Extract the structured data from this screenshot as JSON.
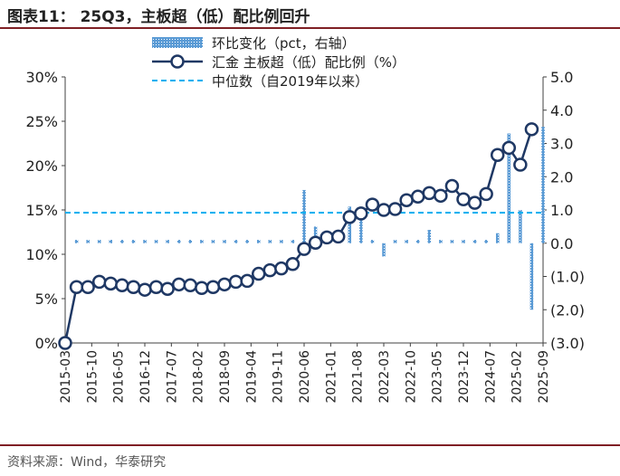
{
  "title": "图表11： 25Q3，主板超（低）配比例回升",
  "source": "资料来源：Wind，华泰研究",
  "colors": {
    "bar": "#5b9bd5",
    "line": "#1f3864",
    "median": "#00b0f0",
    "axis": "#404040"
  },
  "chart_data": {
    "type": "bar+line",
    "x": [
      "2015-03",
      "2015-06",
      "2015-09",
      "2015-12",
      "2016-03",
      "2016-06",
      "2016-09",
      "2016-12",
      "2017-03",
      "2017-06",
      "2017-09",
      "2017-12",
      "2018-03",
      "2018-06",
      "2018-09",
      "2018-12",
      "2019-03",
      "2019-06",
      "2019-09",
      "2019-12",
      "2020-03",
      "2020-06",
      "2020-09",
      "2020-12",
      "2021-03",
      "2021-06",
      "2021-09",
      "2021-12",
      "2022-03",
      "2022-06",
      "2022-09",
      "2022-12",
      "2023-03",
      "2023-06",
      "2023-09",
      "2023-12",
      "2024-03",
      "2024-06",
      "2024-09",
      "2024-12",
      "2025-03",
      "2025-06",
      "2025-09"
    ],
    "x_tick_labels": [
      "2015-03",
      "2015-10",
      "2016-05",
      "2016-12",
      "2017-07",
      "2018-02",
      "2018-09",
      "2019-04",
      "2019-11",
      "2020-06",
      "2021-01",
      "2021-08",
      "2022-03",
      "2022-10",
      "2023-05",
      "2023-12",
      "2024-07",
      "2025-02",
      "2025-09"
    ],
    "series": [
      {
        "name": "环比变化（pct，右轴）",
        "type": "bar",
        "axis": "right",
        "values": [
          null,
          0.1,
          0.1,
          0.1,
          0.1,
          0.1,
          0.1,
          0.1,
          0.1,
          0.1,
          0.1,
          0.1,
          0.1,
          0.1,
          0.1,
          0.1,
          0.1,
          0.1,
          0.1,
          0.1,
          0.1,
          1.6,
          0.5,
          0.1,
          0.1,
          1.1,
          0.8,
          0.1,
          -0.4,
          0.1,
          0.1,
          0.1,
          0.4,
          0.1,
          0.1,
          0.1,
          0.1,
          0.1,
          0.3,
          3.3,
          1.0,
          -2.0,
          3.5
        ]
      },
      {
        "name": "汇金 主板超（低）配比例（%）",
        "type": "line",
        "axis": "left",
        "values": [
          0.0,
          6.3,
          6.3,
          6.9,
          6.7,
          6.5,
          6.3,
          6.0,
          6.3,
          6.1,
          6.6,
          6.5,
          6.2,
          6.3,
          6.6,
          6.9,
          7.0,
          7.8,
          8.2,
          8.4,
          8.9,
          10.6,
          11.3,
          11.9,
          12.0,
          14.2,
          14.6,
          15.6,
          15.0,
          15.1,
          16.1,
          16.5,
          16.9,
          16.6,
          17.7,
          16.2,
          15.8,
          16.8,
          21.2,
          22.0,
          20.1,
          24.1,
          null
        ]
      },
      {
        "name": "中位数（自2019年以来）",
        "type": "hline",
        "axis": "left",
        "value": 14.7
      }
    ],
    "left_axis": {
      "min": 0,
      "max": 30,
      "ticks": [
        "0%",
        "5%",
        "10%",
        "15%",
        "20%",
        "25%",
        "30%"
      ]
    },
    "right_axis": {
      "min": -3,
      "max": 5,
      "ticks": [
        "(3.0)",
        "(2.0)",
        "(1.0)",
        "0.0",
        "1.0",
        "2.0",
        "3.0",
        "4.0",
        "5.0"
      ]
    },
    "legend": [
      "环比变化（pct，右轴）",
      "汇金 主板超（低）配比例（%）",
      "中位数（自2019年以来）"
    ],
    "legend_position": "top-center"
  }
}
